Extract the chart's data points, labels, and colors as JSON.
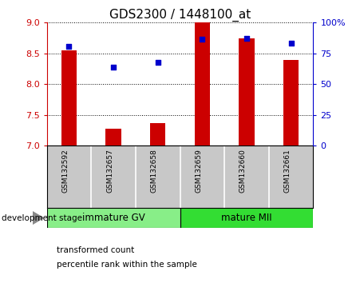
{
  "title": "GDS2300 / 1448100_at",
  "samples": [
    "GSM132592",
    "GSM132657",
    "GSM132658",
    "GSM132659",
    "GSM132660",
    "GSM132661"
  ],
  "bar_values": [
    8.55,
    7.28,
    7.37,
    9.0,
    8.75,
    8.4
  ],
  "percentile_values": [
    8.62,
    8.28,
    8.35,
    8.73,
    8.75,
    8.67
  ],
  "ylim_left": [
    7.0,
    9.0
  ],
  "ylim_right": [
    0,
    100
  ],
  "yticks_left": [
    7.0,
    7.5,
    8.0,
    8.5,
    9.0
  ],
  "yticks_right": [
    0,
    25,
    50,
    75,
    100
  ],
  "yticklabels_right": [
    "0",
    "25",
    "50",
    "75",
    "100%"
  ],
  "bar_color": "#cc0000",
  "dot_color": "#0000cc",
  "bar_width": 0.35,
  "groups": [
    {
      "label": "immature GV",
      "indices": [
        0,
        1,
        2
      ],
      "color": "#88ee88"
    },
    {
      "label": "mature MII",
      "indices": [
        3,
        4,
        5
      ],
      "color": "#33dd33"
    }
  ],
  "group_label": "development stage",
  "legend_bar_label": "transformed count",
  "legend_dot_label": "percentile rank within the sample",
  "tick_area_color": "#c8c8c8",
  "title_fontsize": 11,
  "tick_fontsize": 8,
  "sample_fontsize": 6.5,
  "group_fontsize": 8.5
}
